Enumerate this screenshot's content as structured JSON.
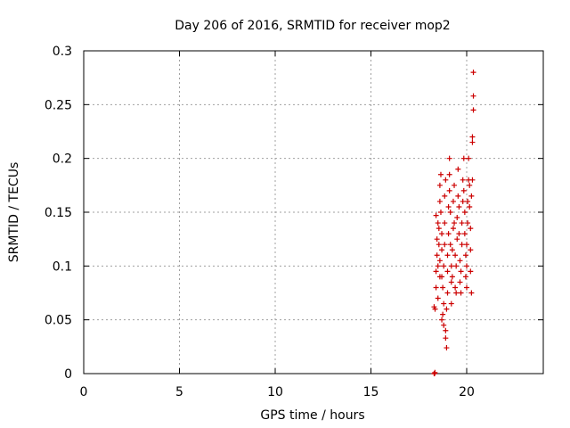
{
  "chart_data": {
    "type": "scatter",
    "title": "Day 206 of 2016, SRMTID for receiver mop2",
    "xlabel": "GPS time / hours",
    "ylabel": "SRMTID / TECUs",
    "xlim": [
      0,
      24
    ],
    "ylim": [
      0,
      0.3
    ],
    "xticks": [
      0,
      5,
      10,
      15,
      20
    ],
    "xtick_labels": [
      "0",
      "5",
      "10",
      "15",
      "20"
    ],
    "yticks": [
      0,
      0.05,
      0.1,
      0.15,
      0.2,
      0.25,
      0.3
    ],
    "ytick_labels": [
      "0",
      "0.05",
      "0.1",
      "0.15",
      "0.2",
      "0.25",
      "0.3"
    ],
    "grid": true,
    "legend": "none",
    "marker": "+",
    "colors": {
      "points": "#cc0000",
      "grid": "#a0a0a0",
      "axes": "#000000"
    },
    "series": [
      {
        "points": [
          [
            18.3,
            0.0
          ],
          [
            18.32,
            0.0
          ],
          [
            18.34,
            0.001
          ],
          [
            18.3,
            0.062
          ],
          [
            18.35,
            0.06
          ],
          [
            18.4,
            0.08
          ],
          [
            18.4,
            0.095
          ],
          [
            18.45,
            0.11
          ],
          [
            18.45,
            0.125
          ],
          [
            18.5,
            0.14
          ],
          [
            18.4,
            0.147
          ],
          [
            18.5,
            0.1
          ],
          [
            18.55,
            0.12
          ],
          [
            18.55,
            0.135
          ],
          [
            18.5,
            0.07
          ],
          [
            18.6,
            0.09
          ],
          [
            18.6,
            0.105
          ],
          [
            18.6,
            0.16
          ],
          [
            18.6,
            0.175
          ],
          [
            18.65,
            0.185
          ],
          [
            18.65,
            0.15
          ],
          [
            18.7,
            0.13
          ],
          [
            18.7,
            0.115
          ],
          [
            18.7,
            0.09
          ],
          [
            18.75,
            0.08
          ],
          [
            18.75,
            0.055
          ],
          [
            18.7,
            0.05
          ],
          [
            18.8,
            0.045
          ],
          [
            18.8,
            0.065
          ],
          [
            18.8,
            0.1
          ],
          [
            18.85,
            0.12
          ],
          [
            18.85,
            0.14
          ],
          [
            18.85,
            0.165
          ],
          [
            18.9,
            0.18
          ],
          [
            18.9,
            0.04
          ],
          [
            18.9,
            0.033
          ],
          [
            18.95,
            0.024
          ],
          [
            18.95,
            0.06
          ],
          [
            19.0,
            0.075
          ],
          [
            19.0,
            0.095
          ],
          [
            19.0,
            0.11
          ],
          [
            19.05,
            0.13
          ],
          [
            19.05,
            0.155
          ],
          [
            19.1,
            0.17
          ],
          [
            19.1,
            0.185
          ],
          [
            19.1,
            0.2
          ],
          [
            19.15,
            0.15
          ],
          [
            19.15,
            0.12
          ],
          [
            19.2,
            0.1
          ],
          [
            19.2,
            0.085
          ],
          [
            19.2,
            0.065
          ],
          [
            19.25,
            0.09
          ],
          [
            19.25,
            0.115
          ],
          [
            19.3,
            0.135
          ],
          [
            19.3,
            0.16
          ],
          [
            19.35,
            0.175
          ],
          [
            19.35,
            0.14
          ],
          [
            19.4,
            0.11
          ],
          [
            19.4,
            0.08
          ],
          [
            19.45,
            0.075
          ],
          [
            19.45,
            0.1
          ],
          [
            19.5,
            0.125
          ],
          [
            19.5,
            0.145
          ],
          [
            19.55,
            0.165
          ],
          [
            19.55,
            0.19
          ],
          [
            19.6,
            0.155
          ],
          [
            19.6,
            0.13
          ],
          [
            19.65,
            0.105
          ],
          [
            19.65,
            0.085
          ],
          [
            19.7,
            0.075
          ],
          [
            19.7,
            0.095
          ],
          [
            19.75,
            0.12
          ],
          [
            19.75,
            0.14
          ],
          [
            19.8,
            0.16
          ],
          [
            19.8,
            0.18
          ],
          [
            19.85,
            0.2
          ],
          [
            19.85,
            0.17
          ],
          [
            19.9,
            0.15
          ],
          [
            19.9,
            0.13
          ],
          [
            19.95,
            0.11
          ],
          [
            19.95,
            0.09
          ],
          [
            20.0,
            0.08
          ],
          [
            20.0,
            0.1
          ],
          [
            20.0,
            0.12
          ],
          [
            20.05,
            0.14
          ],
          [
            20.05,
            0.16
          ],
          [
            20.1,
            0.18
          ],
          [
            20.1,
            0.2
          ],
          [
            20.15,
            0.175
          ],
          [
            20.15,
            0.155
          ],
          [
            20.2,
            0.135
          ],
          [
            20.2,
            0.115
          ],
          [
            20.2,
            0.095
          ],
          [
            20.25,
            0.075
          ],
          [
            20.25,
            0.165
          ],
          [
            20.3,
            0.18
          ],
          [
            20.3,
            0.215
          ],
          [
            20.3,
            0.22
          ],
          [
            20.35,
            0.245
          ],
          [
            20.35,
            0.258
          ],
          [
            20.35,
            0.28
          ]
        ]
      }
    ]
  }
}
